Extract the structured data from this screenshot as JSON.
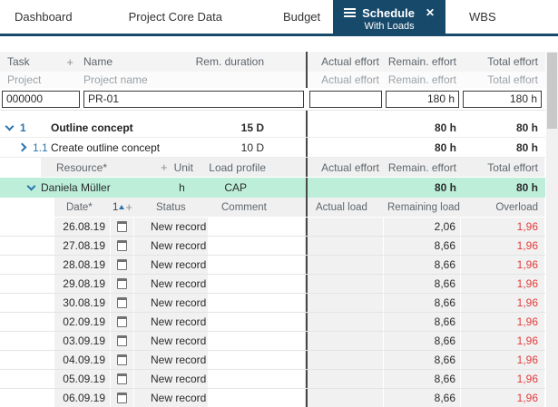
{
  "colors": {
    "accent": "#17496b",
    "highlight_green": "#bceeda",
    "negative_red": "#e23b3b",
    "link_blue": "#2d74ac"
  },
  "tabs": [
    {
      "label": "Dashboard"
    },
    {
      "label": "Project Core Data"
    },
    {
      "label": "Budget"
    },
    {
      "label": "Schedule",
      "sublabel": "With Loads",
      "active": true
    },
    {
      "label": "WBS"
    }
  ],
  "table": {
    "header1": {
      "task": "Task",
      "add": "+",
      "name": "Name",
      "rem_duration": "Rem. duration",
      "actual": "Actual effort",
      "remain": "Remain. effort",
      "total": "Total effort"
    },
    "header2": {
      "project": "Project",
      "project_name": "Project name",
      "actual": "Actual effort",
      "remain": "Remain. effort",
      "total": "Total effort"
    },
    "project_row": {
      "id": "000000",
      "name": "PR-01",
      "actual": "",
      "remain": "180 h",
      "total": "180 h"
    },
    "task_rows": [
      {
        "num": "1",
        "name": "Outline concept",
        "duration": "15 D",
        "actual": "",
        "remain": "80 h",
        "total": "80 h"
      },
      {
        "num": "1.1",
        "name": "Create outline concept",
        "duration": "10 D",
        "actual": "",
        "remain": "80 h",
        "total": "80 h"
      }
    ],
    "resource_header": {
      "resource": "Resource*",
      "add": "+",
      "unit": "Unit",
      "load_profile": "Load profile",
      "actual": "Actual effort",
      "remain": "Remain. effort",
      "total": "Total effort"
    },
    "resource_row": {
      "name": "Daniela Müller",
      "unit": "h",
      "load_profile": "CAP",
      "actual": "",
      "remain": "80 h",
      "total": "80 h"
    },
    "load_header": {
      "date": "Date*",
      "sort": "1",
      "add": "+",
      "status": "Status",
      "comment": "Comment",
      "actual": "Actual load",
      "remaining": "Remaining load",
      "overload": "Overload"
    },
    "load_rows": [
      {
        "date": "26.08.19",
        "status": "New record",
        "comment": "",
        "actual": "",
        "remaining": "2,06",
        "overload": "1,96"
      },
      {
        "date": "27.08.19",
        "status": "New record",
        "comment": "",
        "actual": "",
        "remaining": "8,66",
        "overload": "1,96"
      },
      {
        "date": "28.08.19",
        "status": "New record",
        "comment": "",
        "actual": "",
        "remaining": "8,66",
        "overload": "1,96"
      },
      {
        "date": "29.08.19",
        "status": "New record",
        "comment": "",
        "actual": "",
        "remaining": "8,66",
        "overload": "1,96"
      },
      {
        "date": "30.08.19",
        "status": "New record",
        "comment": "",
        "actual": "",
        "remaining": "8,66",
        "overload": "1,96"
      },
      {
        "date": "02.09.19",
        "status": "New record",
        "comment": "",
        "actual": "",
        "remaining": "8,66",
        "overload": "1,96"
      },
      {
        "date": "03.09.19",
        "status": "New record",
        "comment": "",
        "actual": "",
        "remaining": "8,66",
        "overload": "1,96"
      },
      {
        "date": "04.09.19",
        "status": "New record",
        "comment": "",
        "actual": "",
        "remaining": "8,66",
        "overload": "1,96"
      },
      {
        "date": "05.09.19",
        "status": "New record",
        "comment": "",
        "actual": "",
        "remaining": "8,66",
        "overload": "1,96"
      },
      {
        "date": "06.09.19",
        "status": "New record",
        "comment": "",
        "actual": "",
        "remaining": "8,66",
        "overload": "1,96"
      }
    ]
  }
}
